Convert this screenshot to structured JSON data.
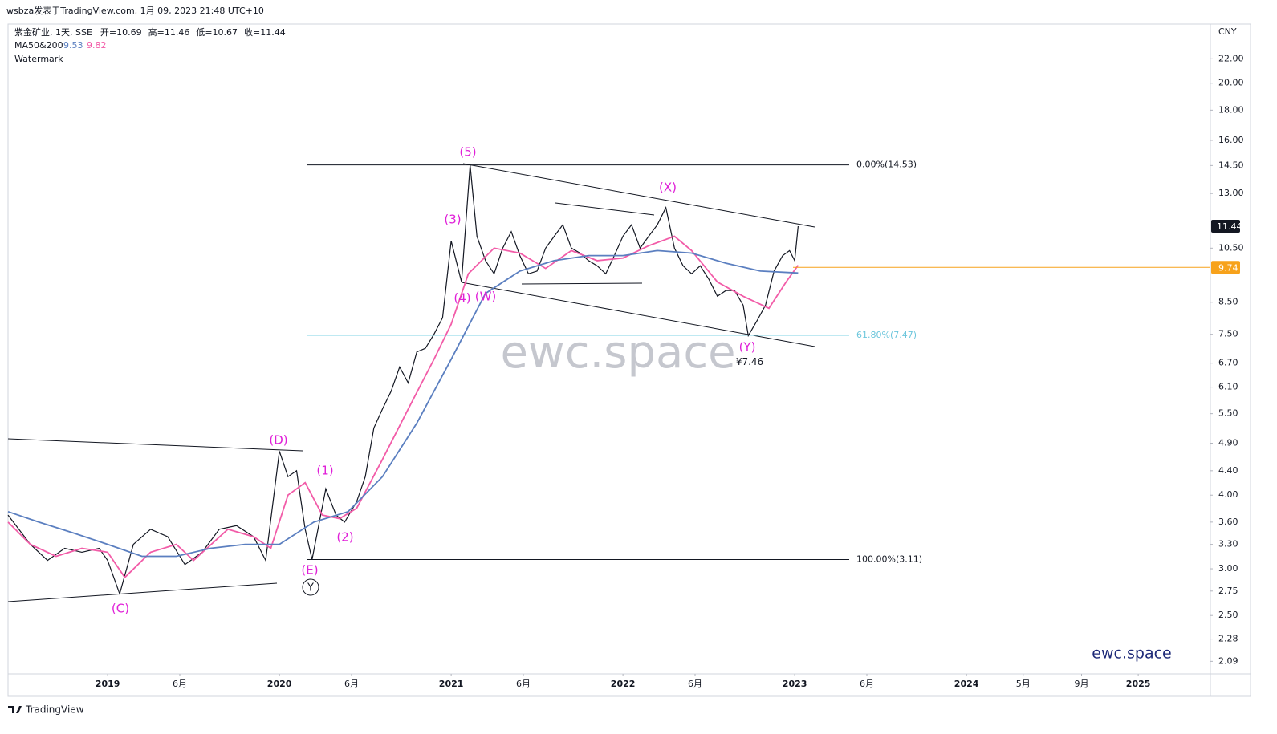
{
  "header": {
    "byline": "wsbza发表于TradingView.com, 1月 09, 2023 21:48 UTC+10",
    "symbol": "紫金矿业, 1天, SSE",
    "ohlc": [
      "开=10.69",
      "高=11.46",
      "低=10.67",
      "收=11.44"
    ],
    "ma_name": "MA50&200",
    "ma_values": [
      9.53,
      9.82
    ],
    "watermark_legend": "Watermark"
  },
  "footer": {
    "brand": "TradingView"
  },
  "chart_data": {
    "type": "line",
    "currency": "CNY",
    "log_scale": true,
    "xlim": [
      2018.42,
      2025.42
    ],
    "ylim": [
      1.99,
      25.2
    ],
    "xticks": [
      {
        "value": 2019,
        "label": "2019"
      },
      {
        "value": 2019.42,
        "label": "6月"
      },
      {
        "value": 2020,
        "label": "2020"
      },
      {
        "value": 2020.42,
        "label": "6月"
      },
      {
        "value": 2021,
        "label": "2021"
      },
      {
        "value": 2021.42,
        "label": "6月"
      },
      {
        "value": 2022,
        "label": "2022"
      },
      {
        "value": 2022.42,
        "label": "6月"
      },
      {
        "value": 2023,
        "label": "2023"
      },
      {
        "value": 2023.42,
        "label": "6月"
      },
      {
        "value": 2024,
        "label": "2024"
      },
      {
        "value": 2024.33,
        "label": "5月"
      },
      {
        "value": 2024.67,
        "label": "9月"
      },
      {
        "value": 2025,
        "label": "2025"
      }
    ],
    "yticks": [
      {
        "value": 22,
        "label": "22.00"
      },
      {
        "value": 20,
        "label": "20.00"
      },
      {
        "value": 18,
        "label": "18.00"
      },
      {
        "value": 16,
        "label": "16.00"
      },
      {
        "value": 14.5,
        "label": "14.50"
      },
      {
        "value": 13,
        "label": "13.00"
      },
      {
        "value": 10.5,
        "label": "10.50"
      },
      {
        "value": 8.5,
        "label": "8.50"
      },
      {
        "value": 7.5,
        "label": "7.50"
      },
      {
        "value": 6.7,
        "label": "6.70"
      },
      {
        "value": 6.1,
        "label": "6.10"
      },
      {
        "value": 5.5,
        "label": "5.50"
      },
      {
        "value": 4.9,
        "label": "4.90"
      },
      {
        "value": 4.4,
        "label": "4.40"
      },
      {
        "value": 4,
        "label": "4.00"
      },
      {
        "value": 3.6,
        "label": "3.60"
      },
      {
        "value": 3.3,
        "label": "3.30"
      },
      {
        "value": 3,
        "label": "3.00"
      },
      {
        "value": 2.75,
        "label": "2.75"
      },
      {
        "value": 2.5,
        "label": "2.50"
      },
      {
        "value": 2.28,
        "label": "2.28"
      },
      {
        "value": 2.09,
        "label": "2.09"
      }
    ],
    "series": [
      {
        "color": "#131722",
        "x": [
          2018.42,
          2018.55,
          2018.65,
          2018.75,
          2018.85,
          2018.95,
          2019.0,
          2019.07,
          2019.15,
          2019.25,
          2019.35,
          2019.45,
          2019.55,
          2019.65,
          2019.75,
          2019.85,
          2019.92,
          2020.0,
          2020.05,
          2020.1,
          2020.15,
          2020.19,
          2020.27,
          2020.33,
          2020.38,
          2020.45,
          2020.5,
          2020.55,
          2020.6,
          2020.65,
          2020.7,
          2020.75,
          2020.8,
          2020.85,
          2020.9,
          2020.95,
          2021.0,
          2021.06,
          2021.11,
          2021.15,
          2021.2,
          2021.25,
          2021.3,
          2021.35,
          2021.4,
          2021.45,
          2021.5,
          2021.55,
          2021.6,
          2021.65,
          2021.7,
          2021.75,
          2021.8,
          2021.85,
          2021.9,
          2021.95,
          2022.0,
          2022.05,
          2022.1,
          2022.15,
          2022.2,
          2022.25,
          2022.3,
          2022.35,
          2022.4,
          2022.45,
          2022.5,
          2022.55,
          2022.6,
          2022.65,
          2022.7,
          2022.73,
          2022.78,
          2022.83,
          2022.88,
          2022.93,
          2022.97,
          2023.0,
          2023.02
        ],
        "values": [
          3.7,
          3.3,
          3.1,
          3.25,
          3.2,
          3.25,
          3.1,
          2.72,
          3.3,
          3.5,
          3.4,
          3.05,
          3.2,
          3.5,
          3.55,
          3.4,
          3.1,
          4.75,
          4.3,
          4.4,
          3.5,
          3.11,
          4.1,
          3.7,
          3.6,
          3.9,
          4.3,
          5.2,
          5.6,
          6.0,
          6.6,
          6.2,
          7.0,
          7.1,
          7.5,
          8.0,
          10.8,
          9.2,
          14.53,
          11.0,
          10.0,
          9.5,
          10.5,
          11.2,
          10.2,
          9.5,
          9.6,
          10.5,
          11.0,
          11.5,
          10.5,
          10.3,
          10.0,
          9.8,
          9.5,
          10.2,
          11.0,
          11.5,
          10.5,
          11.0,
          11.5,
          12.3,
          10.5,
          9.8,
          9.5,
          9.8,
          9.3,
          8.7,
          8.9,
          8.9,
          8.4,
          7.46,
          7.9,
          8.4,
          9.6,
          10.2,
          10.4,
          10.0,
          11.44
        ]
      },
      {
        "color": "#f25ca8",
        "x": [
          2018.42,
          2018.55,
          2018.7,
          2018.85,
          2019.0,
          2019.1,
          2019.25,
          2019.4,
          2019.5,
          2019.7,
          2019.85,
          2019.95,
          2020.05,
          2020.15,
          2020.25,
          2020.35,
          2020.45,
          2020.6,
          2020.75,
          2020.9,
          2021.0,
          2021.1,
          2021.25,
          2021.4,
          2021.55,
          2021.7,
          2021.85,
          2022.0,
          2022.15,
          2022.3,
          2022.4,
          2022.55,
          2022.7,
          2022.85,
          2022.95,
          2023.02
        ],
        "values": [
          3.6,
          3.3,
          3.15,
          3.25,
          3.2,
          2.9,
          3.2,
          3.3,
          3.1,
          3.5,
          3.4,
          3.25,
          4.0,
          4.2,
          3.7,
          3.65,
          3.8,
          4.6,
          5.6,
          6.8,
          7.8,
          9.5,
          10.5,
          10.3,
          9.7,
          10.4,
          10.0,
          10.1,
          10.6,
          11.0,
          10.4,
          9.2,
          8.7,
          8.3,
          9.2,
          9.82
        ]
      },
      {
        "color": "#5b7fc0",
        "x": [
          2018.42,
          2018.6,
          2018.8,
          2019.0,
          2019.2,
          2019.4,
          2019.6,
          2019.8,
          2020.0,
          2020.2,
          2020.4,
          2020.6,
          2020.8,
          2021.0,
          2021.2,
          2021.4,
          2021.6,
          2021.8,
          2022.0,
          2022.2,
          2022.4,
          2022.6,
          2022.8,
          2023.02
        ],
        "values": [
          3.75,
          3.6,
          3.45,
          3.3,
          3.15,
          3.15,
          3.25,
          3.3,
          3.3,
          3.6,
          3.75,
          4.3,
          5.3,
          6.8,
          8.8,
          9.6,
          10.0,
          10.2,
          10.2,
          10.4,
          10.3,
          9.9,
          9.6,
          9.53
        ]
      }
    ],
    "fib_levels": [
      {
        "value": 14.53,
        "label": "0.00%(14.53)",
        "color": "#131722"
      },
      {
        "value": 7.47,
        "label": "61.80%(7.47)",
        "color": "#7fd3e6"
      },
      {
        "value": 3.11,
        "label": "100.00%(3.11)",
        "color": "#131722"
      }
    ],
    "last_price": 11.44,
    "alert_price": 9.74,
    "low_marker": {
      "value": 7.46,
      "label": "¥7.46"
    },
    "wave_labels": [
      "(5)",
      "(3)",
      "(4)",
      "(W)",
      "(X)",
      "(Y)",
      "(D)",
      "(1)",
      "(2)",
      "(E)",
      "(C)"
    ],
    "circled_label": "Y",
    "watermark": "ewc.space",
    "brand_mark": "ewc.space"
  }
}
